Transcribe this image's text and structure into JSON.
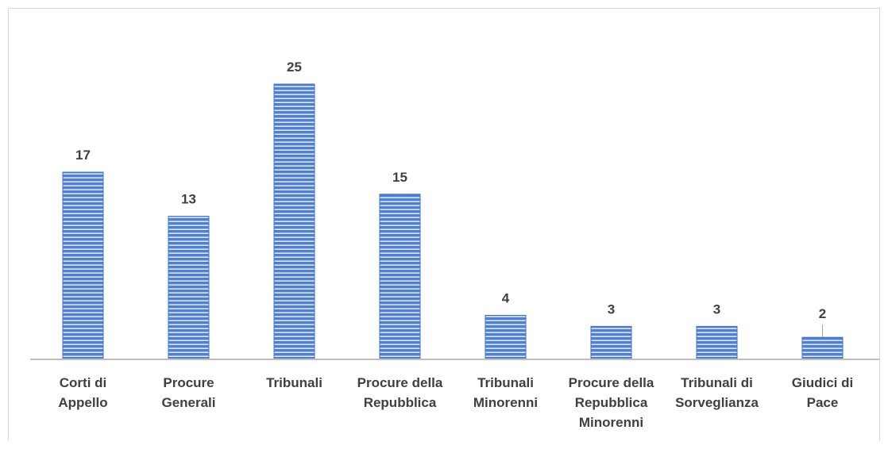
{
  "chart_data": {
    "type": "bar",
    "title": "",
    "xlabel": "",
    "ylabel": "",
    "ylim": [
      0,
      25
    ],
    "grid": false,
    "legend": "none",
    "bar_color": "#4472c4",
    "bar_stripe_color": "#ffffff",
    "categories": [
      [
        "Corti di",
        "Appello"
      ],
      [
        "Procure",
        "Generali"
      ],
      [
        "Tribunali"
      ],
      [
        "Procure della",
        "Repubblica"
      ],
      [
        "Tribunali",
        "Minorenni"
      ],
      [
        "Procure della",
        "Repubblica",
        "Minorenni"
      ],
      [
        "Tribunali di",
        "Sorveglianza"
      ],
      [
        "Giudici di",
        "Pace"
      ]
    ],
    "values": [
      17,
      13,
      25,
      15,
      4,
      3,
      3,
      2
    ],
    "data_labels": [
      "17",
      "13",
      "25",
      "15",
      "4",
      "3",
      "3",
      "2"
    ]
  }
}
